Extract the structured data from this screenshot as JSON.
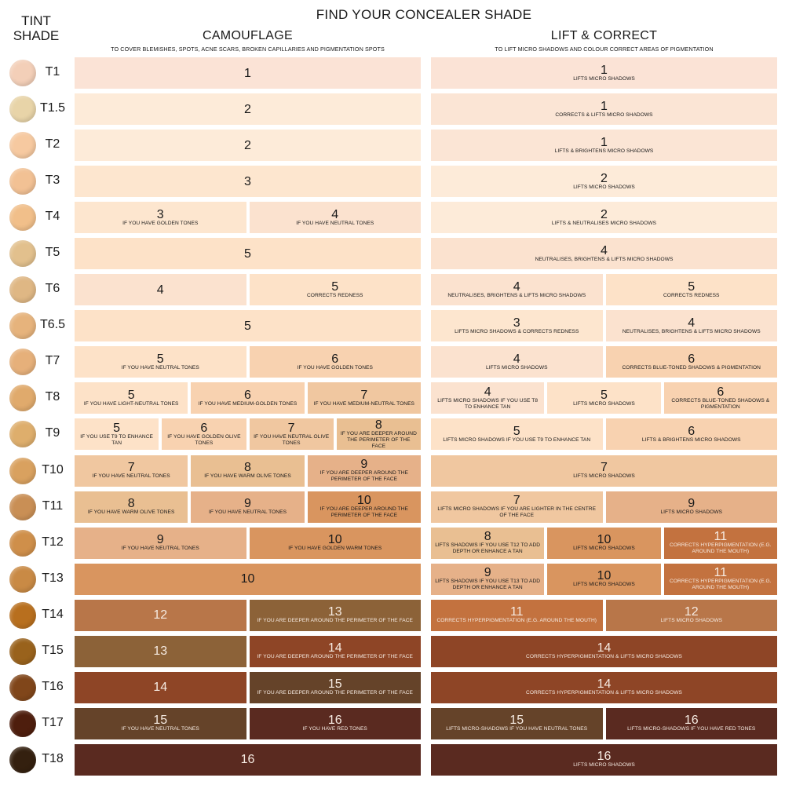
{
  "header": {
    "title": "FIND YOUR CONCEALER SHADE",
    "tint_shade_label": [
      "TINT",
      "SHADE"
    ]
  },
  "sections": {
    "camouflage": {
      "title": "CAMOUFLAGE",
      "subtitle": "TO COVER BLEMISHES, SPOTS, ACNE SCARS, BROKEN CAPILLARIES AND PIGMENTATION SPOTS"
    },
    "lift_correct": {
      "title": "LIFT & CORRECT",
      "subtitle": "TO LIFT MICRO SHADOWS AND COLOUR CORRECT AREAS OF PIGMENTATION"
    }
  },
  "rows": [
    {
      "tint": "T1",
      "swatch": "#f3cfb8",
      "camouflage": [
        {
          "num": "1",
          "note": "",
          "color": "#fbe3d6",
          "text": "light"
        }
      ],
      "lift_correct": [
        {
          "num": "1",
          "note": "LIFTS MICRO SHADOWS",
          "color": "#fbe3d6",
          "text": "light"
        }
      ]
    },
    {
      "tint": "T1.5",
      "swatch": "#e8d4a8",
      "camouflage": [
        {
          "num": "2",
          "note": "",
          "color": "#fdebd9",
          "text": "light"
        }
      ],
      "lift_correct": [
        {
          "num": "1",
          "note": "CORRECTS & LIFTS MICRO SHADOWS",
          "color": "#fbe5d5",
          "text": "light"
        }
      ]
    },
    {
      "tint": "T2",
      "swatch": "#f6c9a0",
      "camouflage": [
        {
          "num": "2",
          "note": "",
          "color": "#fdebd9",
          "text": "light"
        }
      ],
      "lift_correct": [
        {
          "num": "1",
          "note": "LIFTS & BRIGHTENS MICRO SHADOWS",
          "color": "#fbe5d5",
          "text": "light"
        }
      ]
    },
    {
      "tint": "T3",
      "swatch": "#f2c194",
      "camouflage": [
        {
          "num": "3",
          "note": "",
          "color": "#fde6cf",
          "text": "light"
        }
      ],
      "lift_correct": [
        {
          "num": "2",
          "note": "LIFTS MICRO SHADOWS",
          "color": "#fdebd9",
          "text": "light"
        }
      ]
    },
    {
      "tint": "T4",
      "swatch": "#f1bf8a",
      "camouflage": [
        {
          "num": "3",
          "note": "IF YOU HAVE GOLDEN TONES",
          "color": "#fde6cf",
          "text": "light"
        },
        {
          "num": "4",
          "note": "IF YOU HAVE NEUTRAL TONES",
          "color": "#fbe2cf",
          "text": "light"
        }
      ],
      "lift_correct": [
        {
          "num": "2",
          "note": "LIFTS & NEUTRALISES MICRO SHADOWS",
          "color": "#fdebd9",
          "text": "light"
        }
      ]
    },
    {
      "tint": "T5",
      "swatch": "#e2c08d",
      "camouflage": [
        {
          "num": "5",
          "note": "",
          "color": "#fde2c8",
          "text": "light"
        }
      ],
      "lift_correct": [
        {
          "num": "4",
          "note": "NEUTRALISES, BRIGHTENS & LIFTS MICRO SHADOWS",
          "color": "#fbe2cf",
          "text": "light"
        }
      ]
    },
    {
      "tint": "T6",
      "swatch": "#dfb784",
      "camouflage": [
        {
          "num": "4",
          "note": "",
          "color": "#fbe2cf",
          "text": "light"
        },
        {
          "num": "5",
          "note": "CORRECTS REDNESS",
          "color": "#fde2c8",
          "text": "light"
        }
      ],
      "lift_correct": [
        {
          "num": "4",
          "note": "NEUTRALISES, BRIGHTENS & LIFTS MICRO SHADOWS",
          "color": "#fbe2cf",
          "text": "light"
        },
        {
          "num": "5",
          "note": "CORRECTS REDNESS",
          "color": "#fde2c8",
          "text": "light"
        }
      ]
    },
    {
      "tint": "T6.5",
      "swatch": "#e6b37c",
      "camouflage": [
        {
          "num": "5",
          "note": "",
          "color": "#fde2c8",
          "text": "light"
        }
      ],
      "lift_correct": [
        {
          "num": "3",
          "note": "LIFTS MICRO SHADOWS & CORRECTS REDNESS",
          "color": "#fde6cf",
          "text": "light"
        },
        {
          "num": "4",
          "note": "NEUTRALISES, BRIGHTENS & LIFTS MICRO SHADOWS",
          "color": "#fbe2cf",
          "text": "light"
        }
      ]
    },
    {
      "tint": "T7",
      "swatch": "#e6b07a",
      "camouflage": [
        {
          "num": "5",
          "note": "IF YOU HAVE NEUTRAL TONES",
          "color": "#fde2c8",
          "text": "light"
        },
        {
          "num": "6",
          "note": "IF YOU HAVE GOLDEN TONES",
          "color": "#f8d2b0",
          "text": "light"
        }
      ],
      "lift_correct": [
        {
          "num": "4",
          "note": "LIFTS MICRO SHADOWS",
          "color": "#fbe2cf",
          "text": "light"
        },
        {
          "num": "6",
          "note": "CORRECTS BLUE-TONED SHADOWS & PIGMENTATION",
          "color": "#f8d2b0",
          "text": "light"
        }
      ]
    },
    {
      "tint": "T8",
      "swatch": "#e0aa6c",
      "camouflage": [
        {
          "num": "5",
          "note": "IF YOU HAVE LIGHT-NEUTRAL TONES",
          "color": "#fde2c8",
          "text": "light"
        },
        {
          "num": "6",
          "note": "IF YOU HAVE MEDIUM-GOLDEN TONES",
          "color": "#f8d2b0",
          "text": "light"
        },
        {
          "num": "7",
          "note": "IF YOU HAVE MEDIUM-NEUTRAL TONES",
          "color": "#f0c7a0",
          "text": "light"
        }
      ],
      "lift_correct": [
        {
          "num": "4",
          "note": "LIFTS MICRO SHADOWS IF YOU USE T8 TO ENHANCE TAN",
          "color": "#fbe2cf",
          "text": "light"
        },
        {
          "num": "5",
          "note": "LIFTS MICRO SHADOWS",
          "color": "#fde2c8",
          "text": "light"
        },
        {
          "num": "6",
          "note": "CORRECTS BLUE-TONED SHADOWS & PIGMENTATION",
          "color": "#f8d2b0",
          "text": "light"
        }
      ]
    },
    {
      "tint": "T9",
      "swatch": "#deae6c",
      "camouflage": [
        {
          "num": "5",
          "note": "IF YOU USE T9 TO ENHANCE TAN",
          "color": "#fde2c8",
          "text": "light"
        },
        {
          "num": "6",
          "note": "IF YOU HAVE GOLDEN OLIVE TONES",
          "color": "#f8d2b0",
          "text": "light"
        },
        {
          "num": "7",
          "note": "IF YOU HAVE NEUTRAL OLIVE TONES",
          "color": "#f0c7a0",
          "text": "light"
        },
        {
          "num": "8",
          "note": "IF YOU ARE DEEPER AROUND THE PERIMETER OF THE FACE",
          "color": "#e9bf92",
          "text": "light"
        }
      ],
      "lift_correct": [
        {
          "num": "5",
          "note": "LIFTS MICRO SHADOWS IF YOU USE T9 TO ENHANCE TAN",
          "color": "#fde2c8",
          "text": "light"
        },
        {
          "num": "6",
          "note": "LIFTS & BRIGHTENS MICRO SHADOWS",
          "color": "#f8d2b0",
          "text": "light"
        }
      ]
    },
    {
      "tint": "T10",
      "swatch": "#d9a15f",
      "camouflage": [
        {
          "num": "7",
          "note": "IF YOU HAVE NEUTRAL TONES",
          "color": "#f0c7a0",
          "text": "light"
        },
        {
          "num": "8",
          "note": "IF YOU HAVE WARM OLIVE TONES",
          "color": "#e9bf92",
          "text": "light"
        },
        {
          "num": "9",
          "note": "IF YOU ARE DEEPER AROUND THE PERIMETER OF THE FACE",
          "color": "#e6b189",
          "text": "light"
        }
      ],
      "lift_correct": [
        {
          "num": "7",
          "note": "LIFTS MICRO SHADOWS",
          "color": "#f0c7a0",
          "text": "light"
        }
      ]
    },
    {
      "tint": "T11",
      "swatch": "#c98f55",
      "camouflage": [
        {
          "num": "8",
          "note": "IF YOU HAVE WARM OLIVE TONES",
          "color": "#e9bf92",
          "text": "light"
        },
        {
          "num": "9",
          "note": "IF YOU HAVE NEUTRAL TONES",
          "color": "#e6b189",
          "text": "light"
        },
        {
          "num": "10",
          "note": "IF YOU ARE DEEPER AROUND THE PERIMETER OF THE FACE",
          "color": "#d9955f",
          "text": "light"
        }
      ],
      "lift_correct": [
        {
          "num": "7",
          "note": "LIFTS MICRO SHADOWS IF YOU ARE LIGHTER IN THE CENTRE OF THE FACE",
          "color": "#f0c7a0",
          "text": "light"
        },
        {
          "num": "9",
          "note": "LIFTS MICRO SHADOWS",
          "color": "#e6b189",
          "text": "light"
        }
      ]
    },
    {
      "tint": "T12",
      "swatch": "#cf8f4a",
      "camouflage": [
        {
          "num": "9",
          "note": "IF YOU HAVE NEUTRAL TONES",
          "color": "#e6b189",
          "text": "light"
        },
        {
          "num": "10",
          "note": "IF YOU HAVE GOLDEN WARM TONES",
          "color": "#d9955f",
          "text": "light"
        }
      ],
      "lift_correct": [
        {
          "num": "8",
          "note": "LIFTS SHADOWS IF YOU USE T12 TO ADD DEPTH OR ENHANCE A TAN",
          "color": "#e9bf92",
          "text": "light"
        },
        {
          "num": "10",
          "note": "LIFTS MICRO SHADOWS",
          "color": "#d9955f",
          "text": "light"
        },
        {
          "num": "11",
          "note": "CORRECTS HYPERPIGMENTATION (E.G. AROUND THE MOUTH)",
          "color": "#c3723f",
          "text": "dark"
        }
      ]
    },
    {
      "tint": "T13",
      "swatch": "#c98a45",
      "camouflage": [
        {
          "num": "10",
          "note": "",
          "color": "#d9955f",
          "text": "light"
        }
      ],
      "lift_correct": [
        {
          "num": "9",
          "note": "LIFTS SHADOWS IF YOU USE T13 TO ADD DEPTH OR ENHANCE A TAN",
          "color": "#e6b189",
          "text": "light"
        },
        {
          "num": "10",
          "note": "LIFTS MICRO SHADOWS",
          "color": "#d9955f",
          "text": "light"
        },
        {
          "num": "11",
          "note": "CORRECTS HYPERPIGMENTATION (E.G. AROUND THE MOUTH)",
          "color": "#c3723f",
          "text": "dark"
        }
      ]
    },
    {
      "tint": "T14",
      "swatch": "#b86f1e",
      "camouflage": [
        {
          "num": "12",
          "note": "",
          "color": "#b87649",
          "text": "dark"
        },
        {
          "num": "13",
          "note": "IF YOU ARE DEEPER AROUND THE PERIMETER OF THE FACE",
          "color": "#8c6238",
          "text": "dark"
        }
      ],
      "lift_correct": [
        {
          "num": "11",
          "note": "CORRECTS HYPERPIGMENTATION (E.G. AROUND THE MOUTH)",
          "color": "#c3723f",
          "text": "dark"
        },
        {
          "num": "12",
          "note": "LIFTS MICRO SHADOWS",
          "color": "#b87649",
          "text": "dark"
        }
      ]
    },
    {
      "tint": "T15",
      "swatch": "#99621c",
      "camouflage": [
        {
          "num": "13",
          "note": "",
          "color": "#8c6238",
          "text": "dark"
        },
        {
          "num": "14",
          "note": "IF YOU ARE DEEPER AROUND THE PERIMETER OF THE FACE",
          "color": "#8e4526",
          "text": "dark"
        }
      ],
      "lift_correct": [
        {
          "num": "14",
          "note": "CORRECTS HYPERPIGMENTATION & LIFTS  MICRO SHADOWS",
          "color": "#8e4526",
          "text": "dark"
        }
      ]
    },
    {
      "tint": "T16",
      "swatch": "#80461a",
      "camouflage": [
        {
          "num": "14",
          "note": "",
          "color": "#8e4526",
          "text": "dark"
        },
        {
          "num": "15",
          "note": "IF YOU ARE DEEPER AROUND THE PERIMETER OF THE FACE",
          "color": "#654329",
          "text": "dark"
        }
      ],
      "lift_correct": [
        {
          "num": "14",
          "note": "CORRECTS HYPERPIGMENTATION & LIFTS  MICRO SHADOWS",
          "color": "#8e4526",
          "text": "dark"
        }
      ]
    },
    {
      "tint": "T17",
      "swatch": "#4e1e0d",
      "camouflage": [
        {
          "num": "15",
          "note": "IF YOU HAVE NEUTRAL TONES",
          "color": "#654329",
          "text": "dark"
        },
        {
          "num": "16",
          "note": "IF YOU HAVE RED TONES",
          "color": "#5a2a20",
          "text": "dark"
        }
      ],
      "lift_correct": [
        {
          "num": "15",
          "note": "LIFTS  MICRO-SHADOWS IF YOU HAVE NEUTRAL TONES",
          "color": "#654329",
          "text": "dark"
        },
        {
          "num": "16",
          "note": "LIFTS  MICRO-SHADOWS IF YOU HAVE RED TONES",
          "color": "#5a2a20",
          "text": "dark"
        }
      ]
    },
    {
      "tint": "T18",
      "swatch": "#34200f",
      "camouflage": [
        {
          "num": "16",
          "note": "",
          "color": "#5a2a20",
          "text": "dark"
        }
      ],
      "lift_correct": [
        {
          "num": "16",
          "note": "LIFTS MICRO SHADOWS",
          "color": "#5a2a20",
          "text": "dark"
        }
      ]
    }
  ]
}
